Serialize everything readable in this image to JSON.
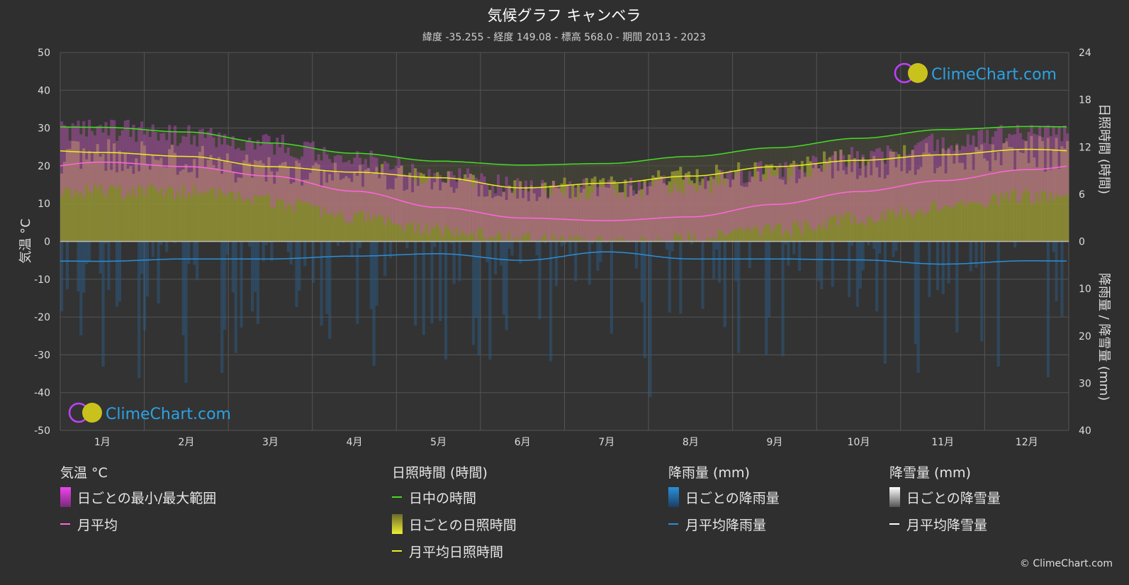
{
  "title": "気候グラフ キャンベラ",
  "subtitle": "緯度 -35.255 - 経度 149.08 - 標高 568.0 - 期間 2013 - 2023",
  "brand": "ClimeChart.com",
  "copyright": "© ClimeChart.com",
  "chart_data": {
    "type": "area",
    "categories": [
      "1月",
      "2月",
      "3月",
      "4月",
      "5月",
      "6月",
      "7月",
      "8月",
      "9月",
      "10月",
      "11月",
      "12月"
    ],
    "y_left": {
      "label": "気温 °C",
      "range": [
        -50,
        50
      ],
      "ticks": [
        50,
        40,
        30,
        20,
        10,
        0,
        -10,
        -20,
        -30,
        -40,
        -50
      ]
    },
    "y_right_top": {
      "label": "日照時間 (時間)",
      "range": [
        0,
        24
      ],
      "ticks": [
        24,
        18,
        12,
        6,
        0
      ]
    },
    "y_right_bottom": {
      "label": "降雨量 / 降雪量 (mm)",
      "range": [
        0,
        40
      ],
      "ticks": [
        0,
        10,
        20,
        30,
        40
      ]
    },
    "grid": true,
    "series": {
      "daylight_hours": [
        14.5,
        13.9,
        12.5,
        11.2,
        10.2,
        9.7,
        9.9,
        10.8,
        11.9,
        13.1,
        14.2,
        14.6
      ],
      "monthly_sunshine_hours": [
        11.3,
        10.8,
        9.5,
        8.8,
        8.1,
        6.8,
        7.4,
        8.3,
        9.5,
        10.3,
        11.0,
        11.7
      ],
      "monthly_avg_temp_c": [
        21.0,
        19.8,
        17.3,
        13.3,
        9.0,
        6.2,
        5.5,
        6.5,
        9.8,
        13.2,
        16.1,
        19.0
      ],
      "daily_max_temp_c": [
        28.5,
        27.0,
        24.5,
        20.5,
        16.5,
        13.0,
        12.5,
        14.0,
        17.5,
        21.0,
        24.5,
        27.5
      ],
      "daily_min_temp_c": [
        13.5,
        13.0,
        10.5,
        6.5,
        3.0,
        0.5,
        -0.5,
        0.5,
        3.0,
        6.0,
        9.0,
        12.0
      ],
      "monthly_avg_rain_mm": [
        4.2,
        3.7,
        3.7,
        3.1,
        2.6,
        4.0,
        2.2,
        3.7,
        3.7,
        3.9,
        4.8,
        4.1
      ]
    },
    "legend": {
      "groups": [
        {
          "title": "気温 °C",
          "items": [
            {
              "label": "日ごとの最小/最大範囲",
              "kind": "box",
              "color": "#d43fd4"
            },
            {
              "label": "月平均",
              "kind": "line",
              "color": "#ff66dd"
            }
          ]
        },
        {
          "title": "日照時間 (時間)",
          "items": [
            {
              "label": "日中の時間",
              "kind": "line",
              "color": "#44dd22"
            },
            {
              "label": "日ごとの日照時間",
              "kind": "box",
              "color": "#c8c832"
            },
            {
              "label": "月平均日照時間",
              "kind": "line",
              "color": "#eeee22"
            }
          ]
        },
        {
          "title": "降雨量 (mm)",
          "items": [
            {
              "label": "日ごとの降雨量",
              "kind": "box",
              "color": "#2b8fd9"
            },
            {
              "label": "月平均降雨量",
              "kind": "line",
              "color": "#2b8fd9"
            }
          ]
        },
        {
          "title": "降雪量 (mm)",
          "items": [
            {
              "label": "日ごとの降雪量",
              "kind": "box",
              "color": "#dddddd"
            },
            {
              "label": "月平均降雪量",
              "kind": "line",
              "color": "#ffffff"
            }
          ]
        }
      ]
    }
  }
}
